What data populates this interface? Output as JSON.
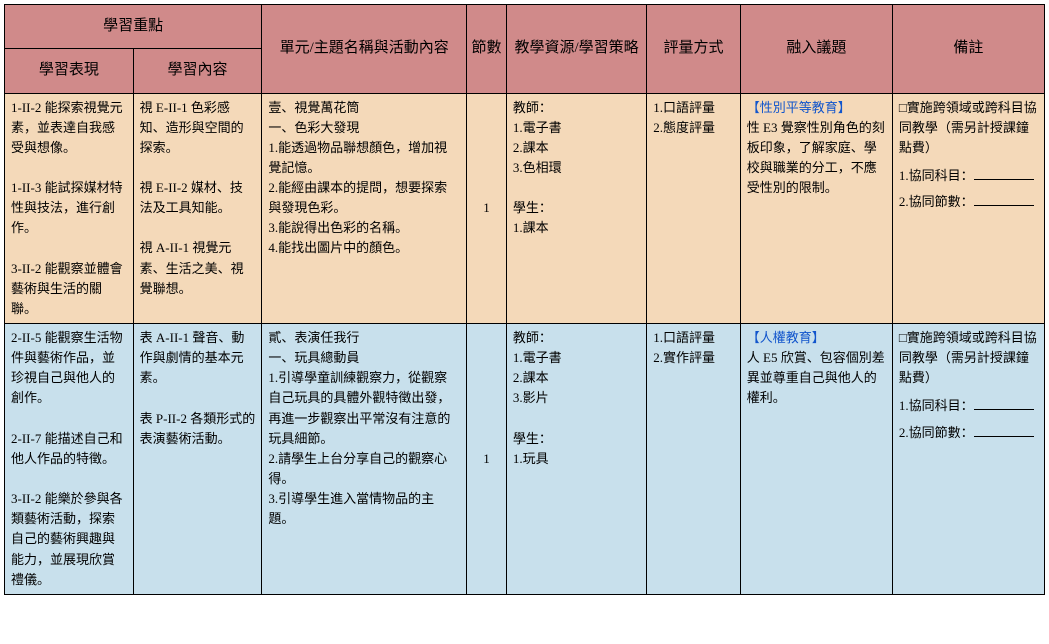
{
  "headers": {
    "focus": "學習重點",
    "performance": "學習表現",
    "content": "學習內容",
    "unit": "單元/主題名稱與活動內容",
    "periods": "節數",
    "resources": "教學資源/學習策略",
    "assessment": "評量方式",
    "topics": "融入議題",
    "notes": "備註"
  },
  "col_widths": {
    "performance": 110,
    "content": 110,
    "unit": 175,
    "periods": 34,
    "resources": 120,
    "assessment": 80,
    "topics": 130,
    "notes": 130
  },
  "header_bg": "#d08a8a",
  "row_colors": {
    "orange": "#f4d9b9",
    "blue": "#c8e0ec"
  },
  "rows": [
    {
      "color": "orange",
      "performance": "1-II-2 能探索視覺元素，並表達自我感受與想像。\n\n1-II-3 能試探媒材特性與技法，進行創作。\n\n3-II-2 能觀察並體會藝術與生活的關聯。",
      "content": "視 E-II-1 色彩感知、造形與空間的探索。\n\n視 E-II-2 媒材、技法及工具知能。\n\n視 A-II-1 視覺元素、生活之美、視覺聯想。",
      "unit": "壹、視覺萬花筒\n一、色彩大發現\n1.能透過物品聯想顏色，增加視覺記憶。\n2.能經由課本的提問，想要探索與發現色彩。\n3.能說得出色彩的名稱。\n4.能找出圖片中的顏色。",
      "periods": "1",
      "resources": "教師：\n1.電子書\n2.課本\n3.色相環\n\n學生：\n1.課本",
      "assessment": "1.口語評量\n2.態度評量",
      "topic_title": "【性別平等教育】",
      "topic_body": "性 E3 覺察性別角色的刻板印象，了解家庭、學校與職業的分工，不應受性別的限制。",
      "notes_intro": "□實施跨領域或跨科目協同教學（需另計授課鐘點費）",
      "notes_line1": "1.協同科目：",
      "notes_line2": "2.協同節數："
    },
    {
      "color": "blue",
      "performance": "2-II-5 能觀察生活物件與藝術作品，並珍視自己與他人的創作。\n\n2-II-7 能描述自己和他人作品的特徵。\n\n3-II-2 能樂於參與各類藝術活動，探索自己的藝術興趣與能力，並展現欣賞禮儀。",
      "content": "表 A-II-1 聲音、動作與劇情的基本元素。\n\n表 P-II-2 各類形式的表演藝術活動。",
      "unit": "貳、表演任我行\n一、玩具總動員\n1.引導學童訓練觀察力，從觀察自己玩具的具體外觀特徵出發，再進一步觀察出平常沒有注意的玩具細節。\n2.請學生上台分享自己的觀察心得。\n3.引導學生進入當情物品的主題。",
      "periods": "1",
      "resources": "教師：\n1.電子書\n2.課本\n3.影片\n\n學生：\n1.玩具",
      "assessment": "1.口語評量\n2.實作評量",
      "topic_title": "【人權教育】",
      "topic_body": "人 E5 欣賞、包容個別差異並尊重自己與他人的權利。",
      "notes_intro": "□實施跨領域或跨科目協同教學（需另計授課鐘點費）",
      "notes_line1": "1.協同科目：",
      "notes_line2": "2.協同節數："
    }
  ]
}
